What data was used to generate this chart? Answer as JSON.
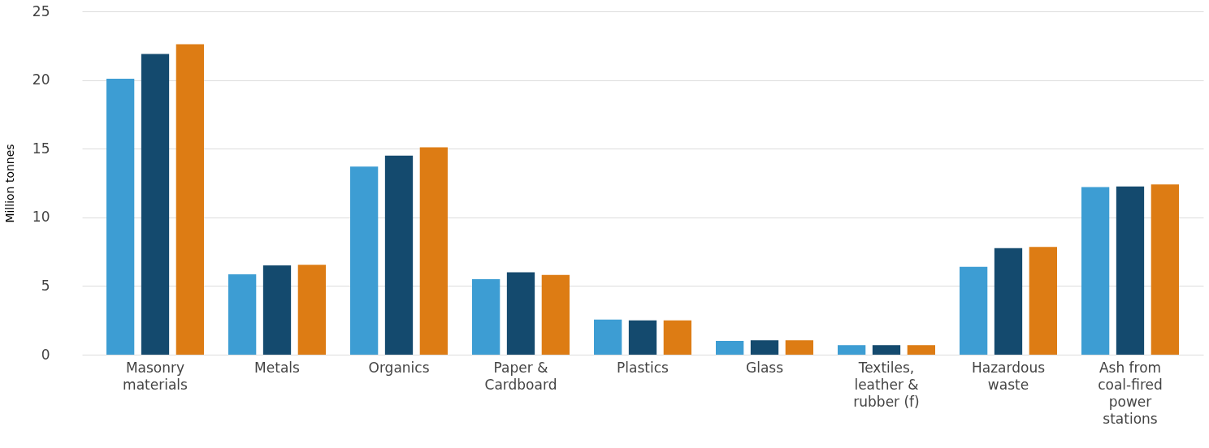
{
  "chart_data": {
    "type": "bar",
    "ylabel": "Million tonnes",
    "categories": [
      "Masonry materials",
      "Metals",
      "Organics",
      "Paper & Cardboard",
      "Plastics",
      "Glass",
      "Textiles, leather & rubber (f)",
      "Hazardous waste",
      "Ash from coal-fired power stations"
    ],
    "series": [
      {
        "color": "#3d9dd3",
        "values": [
          20.1,
          5.85,
          13.7,
          5.5,
          2.55,
          1.0,
          0.7,
          6.4,
          12.2
        ]
      },
      {
        "color": "#144a6e",
        "values": [
          21.9,
          6.5,
          14.5,
          6.0,
          2.5,
          1.05,
          0.7,
          7.75,
          12.25
        ]
      },
      {
        "color": "#dd7c14",
        "values": [
          22.6,
          6.55,
          15.1,
          5.8,
          2.5,
          1.05,
          0.7,
          7.85,
          12.4
        ]
      }
    ],
    "ylim": [
      0,
      25
    ],
    "yticks": [
      0,
      5,
      10,
      15,
      20,
      25
    ],
    "grid": "y",
    "legend": false
  }
}
